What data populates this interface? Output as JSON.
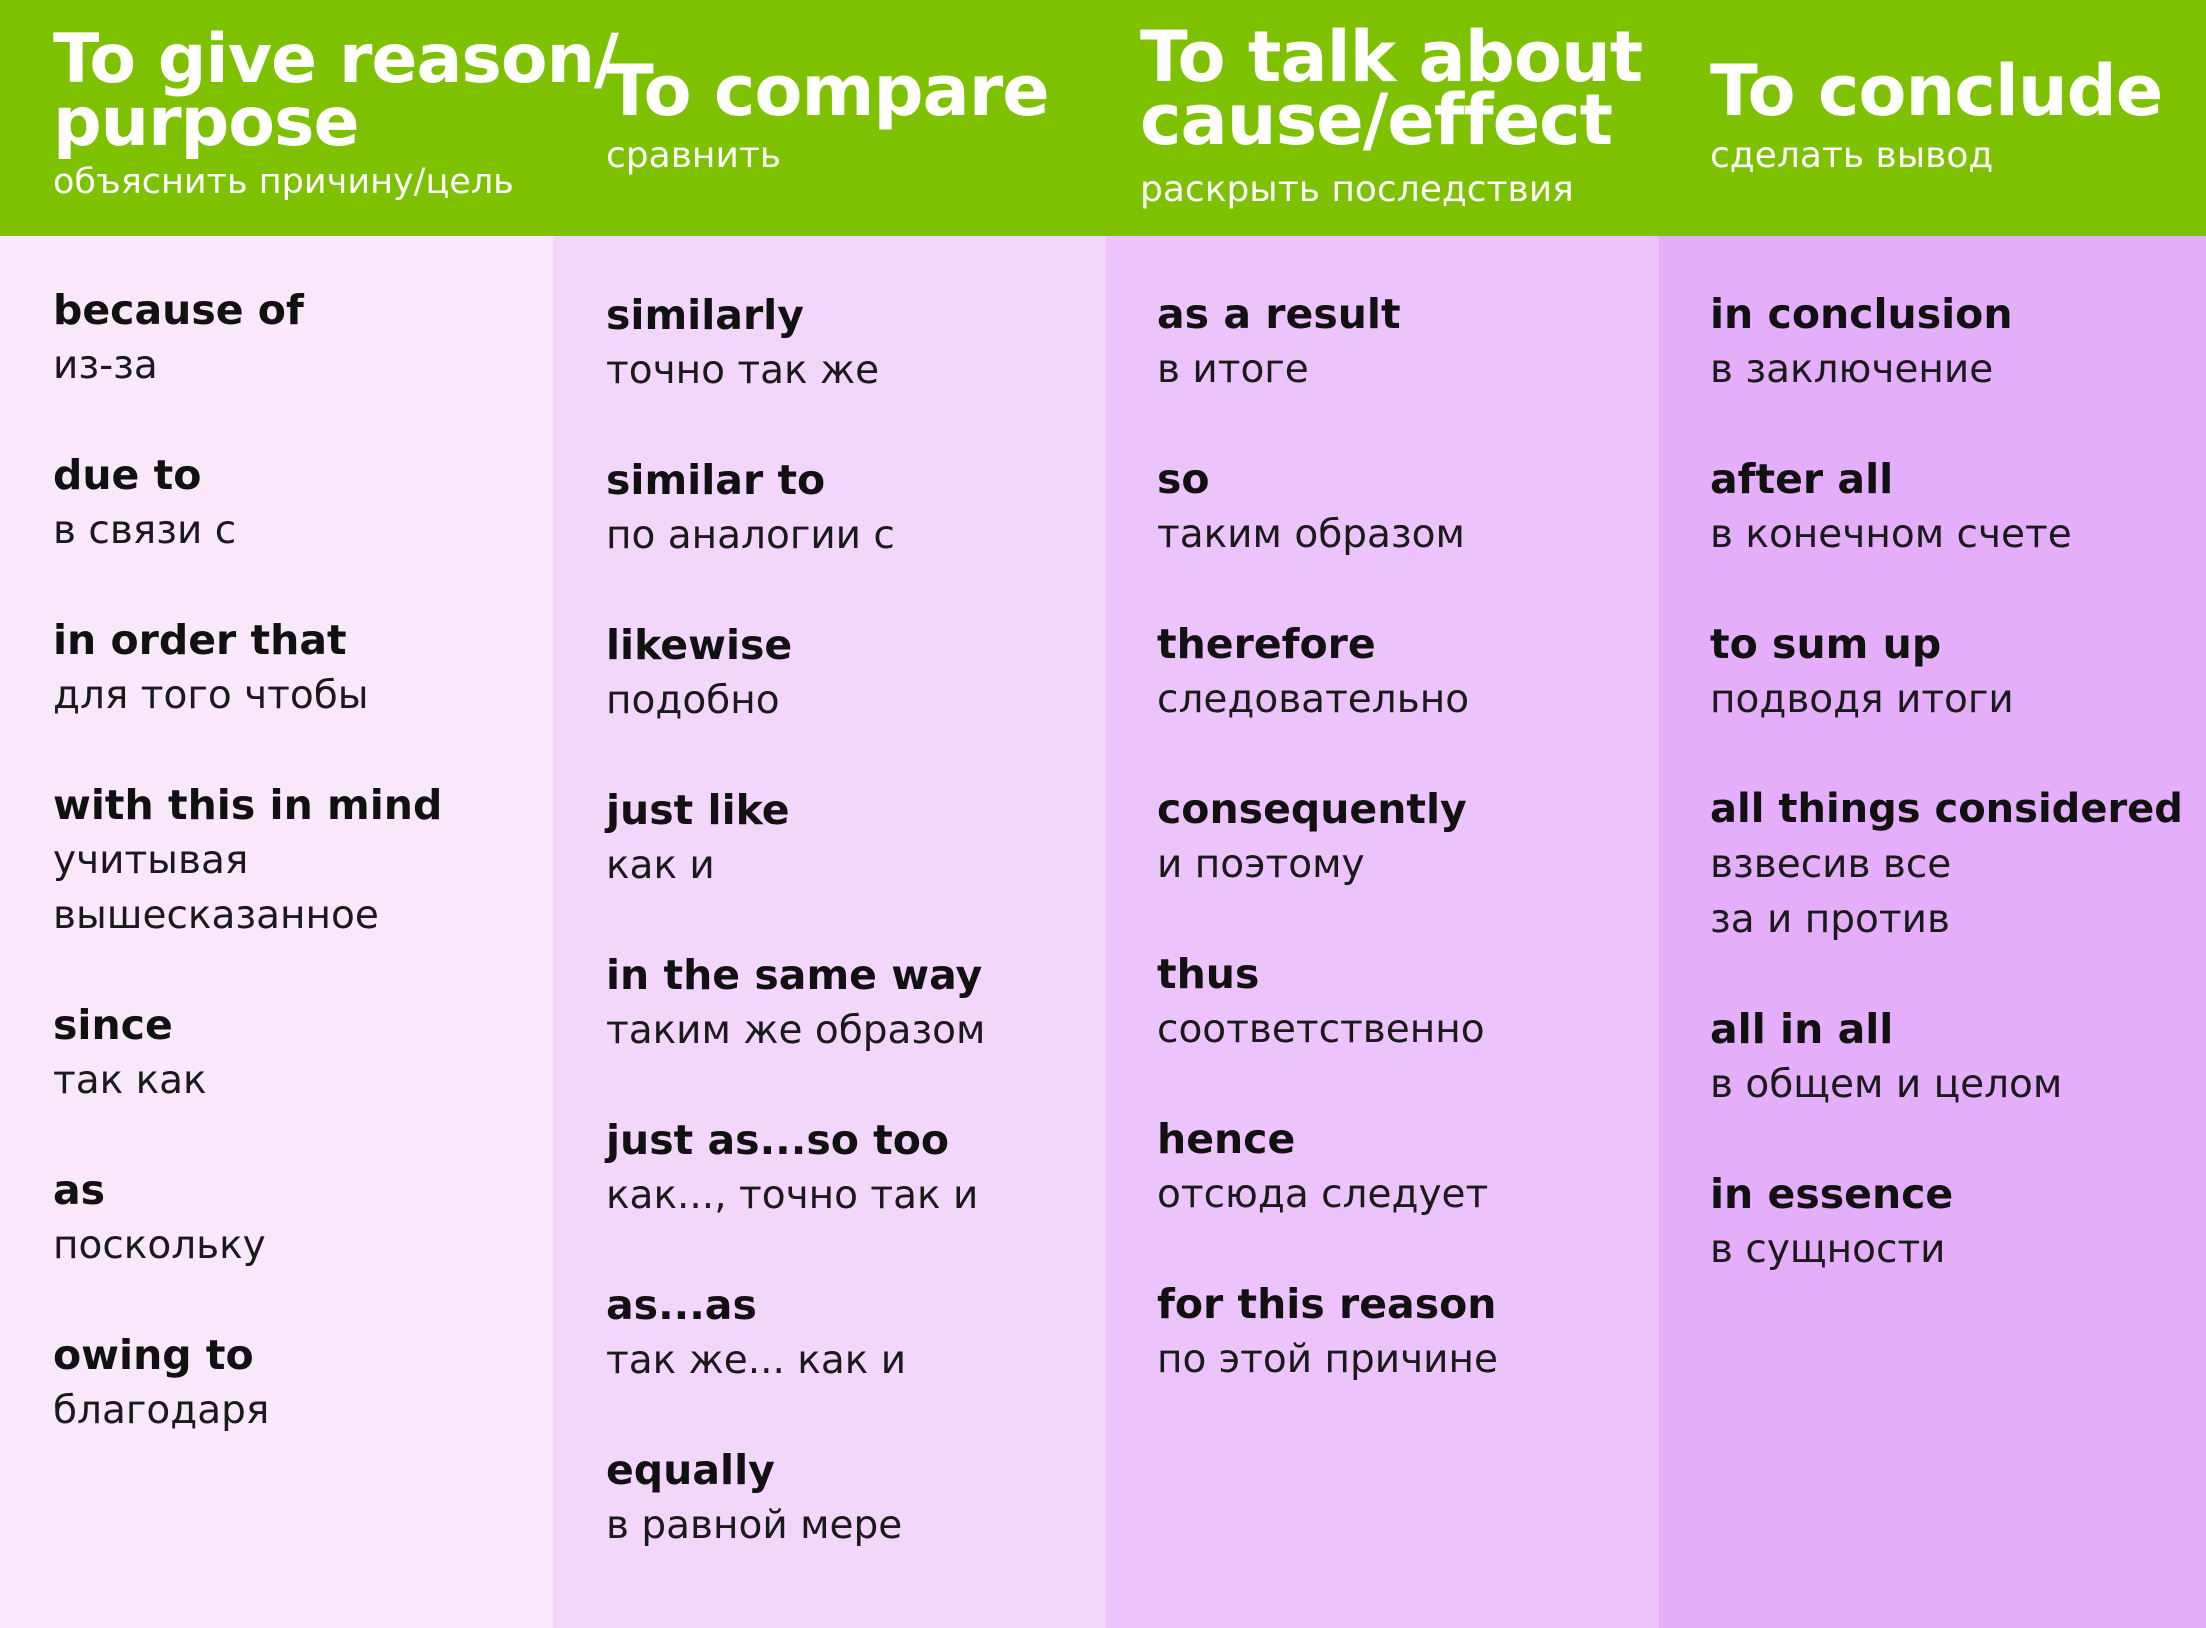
{
  "colors": {
    "header_green": "#7dc100",
    "column_1_bg": "#f8e8fa",
    "column_2_bg": "#f2d7fb",
    "column_3_bg": "#ecc4fb",
    "column_4_bg": "#e5aefb",
    "header_text": "#ffffff",
    "body_text": "#111111"
  },
  "columns": [
    {
      "title_lines": [
        "To give reason/",
        "purpose"
      ],
      "subtitle": "объяснить причину/цель",
      "entries": [
        {
          "term": "because of",
          "translation_lines": [
            "из-за"
          ]
        },
        {
          "term": "due to",
          "translation_lines": [
            "в связи с"
          ]
        },
        {
          "term": "in order that",
          "translation_lines": [
            "для того чтобы"
          ]
        },
        {
          "term": "with this in mind",
          "translation_lines": [
            "учитывая",
            "вышесказанное"
          ]
        },
        {
          "term": "since",
          "translation_lines": [
            "так как"
          ]
        },
        {
          "term": "as",
          "translation_lines": [
            "поскольку"
          ]
        },
        {
          "term": "owing to",
          "translation_lines": [
            "благодаря"
          ]
        }
      ]
    },
    {
      "title_lines": [
        "To compare"
      ],
      "subtitle": "сравнить",
      "entries": [
        {
          "term": "similarly",
          "translation_lines": [
            "точно так же"
          ]
        },
        {
          "term": "similar to",
          "translation_lines": [
            "по аналогии с"
          ]
        },
        {
          "term": "likewise",
          "translation_lines": [
            "подобно"
          ]
        },
        {
          "term": "just like",
          "translation_lines": [
            "как и"
          ]
        },
        {
          "term": "in the same way",
          "translation_lines": [
            "таким же образом"
          ]
        },
        {
          "term": "just as...so too",
          "translation_lines": [
            "как..., точно так и"
          ]
        },
        {
          "term": "as...as",
          "translation_lines": [
            "так же... как и"
          ]
        },
        {
          "term": "equally",
          "translation_lines": [
            "в равной мере"
          ]
        }
      ]
    },
    {
      "title_lines": [
        "To talk about",
        "cause/effect"
      ],
      "subtitle": "раскрыть последствия",
      "entries": [
        {
          "term": "as a result",
          "translation_lines": [
            "в итоге"
          ]
        },
        {
          "term": "so",
          "translation_lines": [
            "таким образом"
          ]
        },
        {
          "term": "therefore",
          "translation_lines": [
            "следовательно"
          ]
        },
        {
          "term": "consequently",
          "translation_lines": [
            "и поэтому"
          ]
        },
        {
          "term": "thus",
          "translation_lines": [
            "соответственно"
          ]
        },
        {
          "term": "hence",
          "translation_lines": [
            "отсюда следует"
          ]
        },
        {
          "term": "for this reason",
          "translation_lines": [
            "по этой причине"
          ]
        }
      ]
    },
    {
      "title_lines": [
        "To conclude"
      ],
      "subtitle": "сделать вывод",
      "entries": [
        {
          "term": "in conclusion",
          "translation_lines": [
            "в заключение"
          ]
        },
        {
          "term": "after all",
          "translation_lines": [
            "в конечном счете"
          ]
        },
        {
          "term": "to sum up",
          "translation_lines": [
            "подводя итоги"
          ]
        },
        {
          "term": "all things considered",
          "translation_lines": [
            "взвесив все",
            "за и против"
          ]
        },
        {
          "term": "all in all",
          "translation_lines": [
            "в общем и целом"
          ]
        },
        {
          "term": "in essence",
          "translation_lines": [
            "в сущности"
          ]
        }
      ]
    }
  ]
}
